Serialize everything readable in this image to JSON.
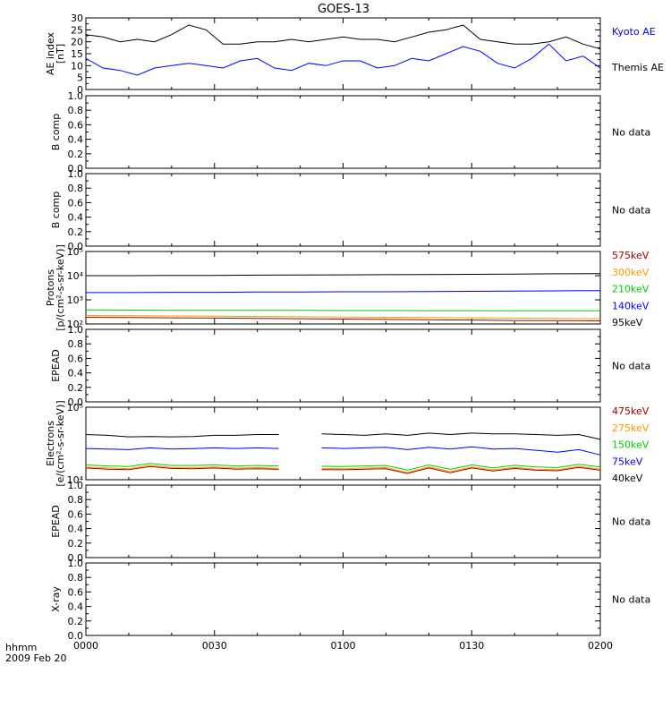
{
  "title": "GOES-13",
  "time_axis": {
    "ticks": [
      "0000",
      "0030",
      "0100",
      "0130",
      "0200"
    ],
    "tick_minutes": [
      0,
      30,
      60,
      90,
      120
    ],
    "label_top": "hhmm",
    "label_bottom": "2009 Feb 20"
  },
  "no_data_text": "No data",
  "colors": {
    "black": "#000000",
    "blue": "#0000ff",
    "red": "#a00000",
    "orange": "#ff9900",
    "green": "#00cc00"
  },
  "chart_data": [
    {
      "id": "ae",
      "type": "line",
      "ylabel_lines": [
        "AE index",
        "[nT]"
      ],
      "yticks": [
        "0",
        "5",
        "10",
        "15",
        "20",
        "25",
        "30"
      ],
      "ylim": [
        0,
        30
      ],
      "log": false,
      "x": [
        0,
        4,
        8,
        12,
        16,
        20,
        24,
        28,
        32,
        36,
        40,
        44,
        48,
        52,
        56,
        60,
        64,
        68,
        72,
        76,
        80,
        84,
        88,
        92,
        96,
        100,
        104,
        108,
        112,
        116,
        120
      ],
      "series": [
        {
          "name": "Kyoto AE",
          "color": "blue",
          "legend_color": "blue",
          "values": [
            23,
            22,
            20,
            21,
            20,
            23,
            27,
            25,
            19,
            19,
            20,
            20,
            21,
            20,
            21,
            22,
            21,
            21,
            20,
            22,
            24,
            25,
            27,
            21,
            20,
            19,
            19,
            20,
            22,
            19,
            17
          ]
        },
        {
          "name": "Themis AE",
          "color": "blue",
          "legend_color": "black",
          "values": [
            13,
            9,
            8,
            6,
            9,
            10,
            11,
            10,
            9,
            12,
            13,
            9,
            8,
            11,
            10,
            12,
            12,
            9,
            10,
            13,
            12,
            15,
            18,
            16,
            11,
            9,
            13,
            19,
            12,
            14,
            9
          ]
        }
      ]
    },
    {
      "id": "bcomp1",
      "type": "line",
      "ylabel_lines": [
        "B comp"
      ],
      "yticks": [
        "0.0",
        "0.2",
        "0.4",
        "0.6",
        "0.8",
        "1.0"
      ],
      "ylim": [
        0,
        1
      ],
      "log": false,
      "no_data": true
    },
    {
      "id": "bcomp2",
      "type": "line",
      "ylabel_lines": [
        "B comp"
      ],
      "yticks": [
        "0.0",
        "0.2",
        "0.4",
        "0.6",
        "0.8",
        "1.0"
      ],
      "ylim": [
        0,
        1
      ],
      "log": false,
      "no_data": true
    },
    {
      "id": "protons",
      "type": "line",
      "ylabel_lines": [
        "Protons",
        "[p/(cm²-s-sr-keV)]"
      ],
      "yticks": [
        "10²",
        "10³",
        "10⁴",
        "10⁵"
      ],
      "ylim": [
        100,
        100000
      ],
      "log": true,
      "x": [
        0,
        10,
        20,
        30,
        40,
        50,
        60,
        70,
        80,
        90,
        100,
        110,
        120
      ],
      "series": [
        {
          "name": "575keV",
          "color": "red",
          "values": [
            190,
            185,
            180,
            175,
            170,
            165,
            160,
            155,
            150,
            145,
            140,
            138,
            135
          ]
        },
        {
          "name": "300keV",
          "color": "orange",
          "values": [
            225,
            220,
            215,
            210,
            205,
            200,
            195,
            190,
            185,
            180,
            175,
            170,
            165
          ]
        },
        {
          "name": "210keV",
          "color": "green",
          "values": [
            380,
            375,
            370,
            370,
            365,
            365,
            360,
            360,
            355,
            355,
            350,
            350,
            350
          ]
        },
        {
          "name": "140keV",
          "color": "blue",
          "values": [
            2000,
            2000,
            2050,
            2050,
            2100,
            2100,
            2150,
            2150,
            2200,
            2250,
            2300,
            2350,
            2400
          ]
        },
        {
          "name": "95keV",
          "color": "black",
          "values": [
            10000,
            10000,
            10200,
            10300,
            10500,
            10600,
            10800,
            11000,
            11200,
            11400,
            11700,
            12000,
            12200
          ]
        }
      ]
    },
    {
      "id": "epead1",
      "type": "line",
      "ylabel_lines": [
        "EPEAD"
      ],
      "yticks": [
        "0.0",
        "0.2",
        "0.4",
        "0.6",
        "0.8",
        "1.0"
      ],
      "ylim": [
        0,
        1
      ],
      "log": false,
      "no_data": true
    },
    {
      "id": "electrons",
      "type": "line",
      "ylabel_lines": [
        "Electrons",
        "[e/(cm²-s-sr-keV)]"
      ],
      "yticks": [
        "10⁴",
        "10⁵"
      ],
      "ylim": [
        10000,
        100000
      ],
      "log": true,
      "x": [
        0,
        5,
        10,
        15,
        20,
        25,
        30,
        35,
        40,
        45,
        50,
        55,
        60,
        65,
        70,
        75,
        80,
        85,
        90,
        95,
        100,
        105,
        110,
        115,
        120
      ],
      "gap": [
        49,
        51
      ],
      "series": [
        {
          "name": "475keV",
          "color": "red",
          "values": [
            14500,
            14000,
            13800,
            15200,
            14300,
            14200,
            14500,
            14000,
            14200,
            13900,
            13600,
            13800,
            13700,
            14000,
            14200,
            12200,
            14500,
            12500,
            14500,
            13200,
            14300,
            13500,
            13300,
            14800,
            13500
          ]
        },
        {
          "name": "275keV",
          "color": "orange",
          "values": [
            15000,
            14500,
            14200,
            15800,
            14700,
            14700,
            15000,
            14500,
            14700,
            14400,
            14100,
            14300,
            14200,
            14500,
            14700,
            12600,
            15000,
            13000,
            15000,
            13700,
            14800,
            14000,
            13800,
            15300,
            14000
          ]
        },
        {
          "name": "150keV",
          "color": "green",
          "values": [
            16000,
            15500,
            15200,
            16800,
            15700,
            15700,
            16000,
            15500,
            15700,
            15400,
            15100,
            15300,
            15200,
            15500,
            15700,
            13500,
            16000,
            13900,
            16000,
            14600,
            15800,
            15000,
            14700,
            16300,
            15000
          ]
        },
        {
          "name": "75keV",
          "color": "blue",
          "values": [
            27000,
            26500,
            26000,
            27500,
            26500,
            26800,
            27500,
            27000,
            27500,
            27000,
            27000,
            27500,
            27000,
            27500,
            28000,
            26000,
            28000,
            26500,
            28500,
            26500,
            27000,
            25500,
            24000,
            26000,
            22000
          ]
        },
        {
          "name": "40keV",
          "color": "black",
          "values": [
            42000,
            41000,
            39000,
            39500,
            39000,
            39500,
            41000,
            41000,
            42000,
            42000,
            42500,
            43000,
            42000,
            41000,
            43000,
            41000,
            44000,
            42000,
            44000,
            43000,
            43000,
            42000,
            41000,
            42000,
            36000
          ]
        }
      ]
    },
    {
      "id": "epead2",
      "type": "line",
      "ylabel_lines": [
        "EPEAD"
      ],
      "yticks": [
        "0.0",
        "0.2",
        "0.4",
        "0.6",
        "0.8",
        "1.0"
      ],
      "ylim": [
        0,
        1
      ],
      "log": false,
      "no_data": true
    },
    {
      "id": "xray",
      "type": "line",
      "ylabel_lines": [
        "X-ray"
      ],
      "yticks": [
        "0.0",
        "0.2",
        "0.4",
        "0.6",
        "0.8",
        "1.0"
      ],
      "ylim": [
        0,
        1
      ],
      "log": false,
      "no_data": true
    }
  ]
}
